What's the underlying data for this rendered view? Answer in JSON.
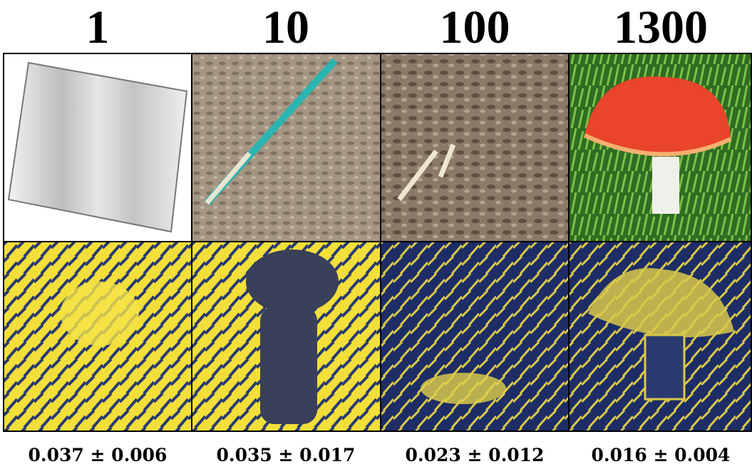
{
  "columns": [
    {
      "header": "1",
      "caption": "0.037 ± 0.006"
    },
    {
      "header": "10",
      "caption": "0.035 ± 0.017"
    },
    {
      "header": "100",
      "caption": "0.023 ± 0.012"
    },
    {
      "header": "1300",
      "caption": "0.016 ± 0.004"
    }
  ]
}
